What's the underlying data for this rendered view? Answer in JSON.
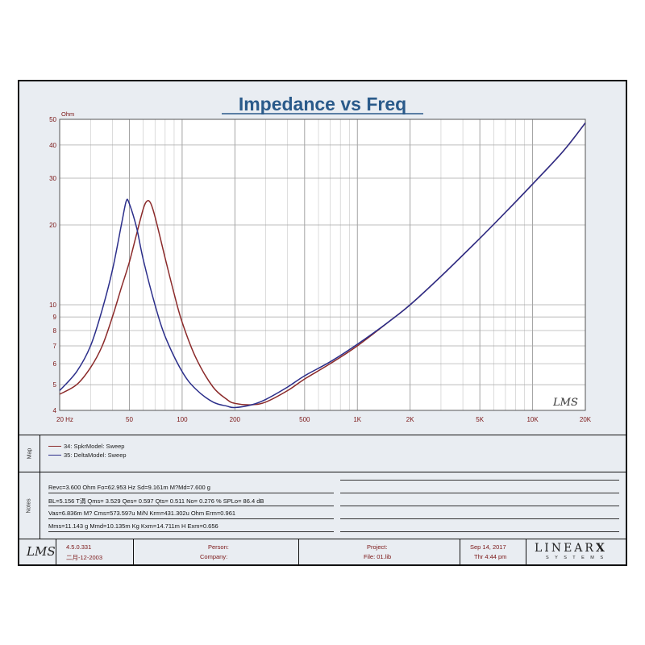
{
  "chart_data": {
    "type": "line",
    "title": "Impedance vs Freq",
    "ylabel": "Ohm",
    "xlabel": "",
    "x_scale": "log",
    "y_scale": "log",
    "xlim": [
      20,
      20000
    ],
    "ylim": [
      4,
      50
    ],
    "grid": true,
    "x_ticks": [
      {
        "v": 20,
        "label": "20  Hz"
      },
      {
        "v": 50,
        "label": "50"
      },
      {
        "v": 100,
        "label": "100"
      },
      {
        "v": 200,
        "label": "200"
      },
      {
        "v": 500,
        "label": "500"
      },
      {
        "v": 1000,
        "label": "1K"
      },
      {
        "v": 2000,
        "label": "2K"
      },
      {
        "v": 5000,
        "label": "5K"
      },
      {
        "v": 10000,
        "label": "10K"
      },
      {
        "v": 20000,
        "label": "20K"
      }
    ],
    "y_ticks": [
      {
        "v": 4,
        "label": "4"
      },
      {
        "v": 5,
        "label": "5"
      },
      {
        "v": 6,
        "label": "6"
      },
      {
        "v": 7,
        "label": "7"
      },
      {
        "v": 8,
        "label": "8"
      },
      {
        "v": 9,
        "label": "9"
      },
      {
        "v": 10,
        "label": "10"
      },
      {
        "v": 20,
        "label": "20"
      },
      {
        "v": 30,
        "label": "30"
      },
      {
        "v": 40,
        "label": "40"
      },
      {
        "v": 50,
        "label": "50"
      }
    ],
    "series": [
      {
        "name": "34: SpkrModel: Sweep",
        "color": "#8b2a2a",
        "points": [
          [
            20,
            4.6
          ],
          [
            25,
            5.0
          ],
          [
            30,
            5.8
          ],
          [
            35,
            7.0
          ],
          [
            40,
            9.0
          ],
          [
            45,
            11.6
          ],
          [
            50,
            14.5
          ],
          [
            55,
            18.5
          ],
          [
            60,
            23.0
          ],
          [
            63,
            24.6
          ],
          [
            66,
            24.2
          ],
          [
            70,
            21.5
          ],
          [
            80,
            15.0
          ],
          [
            90,
            11.0
          ],
          [
            100,
            8.6
          ],
          [
            120,
            6.3
          ],
          [
            150,
            4.9
          ],
          [
            180,
            4.4
          ],
          [
            200,
            4.25
          ],
          [
            250,
            4.2
          ],
          [
            300,
            4.3
          ],
          [
            400,
            4.75
          ],
          [
            500,
            5.25
          ],
          [
            700,
            6.0
          ],
          [
            1000,
            7.0
          ],
          [
            1500,
            8.6
          ],
          [
            2000,
            10.0
          ],
          [
            3000,
            12.8
          ],
          [
            5000,
            17.8
          ],
          [
            7000,
            22.3
          ],
          [
            10000,
            28.5
          ],
          [
            15000,
            38.0
          ],
          [
            20000,
            48.5
          ]
        ]
      },
      {
        "name": "35: DeltaModel: Sweep",
        "color": "#2b2e8a",
        "points": [
          [
            20,
            4.75
          ],
          [
            25,
            5.6
          ],
          [
            30,
            7.0
          ],
          [
            35,
            9.6
          ],
          [
            40,
            13.5
          ],
          [
            45,
            20.0
          ],
          [
            48,
            24.6
          ],
          [
            50,
            24.0
          ],
          [
            55,
            19.5
          ],
          [
            60,
            14.8
          ],
          [
            70,
            10.0
          ],
          [
            80,
            7.6
          ],
          [
            100,
            5.6
          ],
          [
            120,
            4.8
          ],
          [
            150,
            4.3
          ],
          [
            180,
            4.15
          ],
          [
            200,
            4.1
          ],
          [
            250,
            4.2
          ],
          [
            300,
            4.4
          ],
          [
            400,
            4.9
          ],
          [
            500,
            5.4
          ],
          [
            700,
            6.1
          ],
          [
            1000,
            7.1
          ],
          [
            1500,
            8.6
          ],
          [
            2000,
            10.0
          ],
          [
            3000,
            12.8
          ],
          [
            5000,
            17.8
          ],
          [
            7000,
            22.3
          ],
          [
            10000,
            28.5
          ],
          [
            15000,
            38.0
          ],
          [
            20000,
            48.5
          ]
        ]
      }
    ],
    "watermark": "LMS"
  },
  "map": {
    "label": "Map",
    "items": [
      {
        "text": "34: SpkrModel: Sweep",
        "color": "#8b2a2a"
      },
      {
        "text": "35: DeltaModel: Sweep",
        "color": "#2b2e8a"
      }
    ]
  },
  "notes": {
    "label": "Notes",
    "lines": [
      "Revc=3.600 Ohm  Fo=62.953 Hz  Sd=9.161m  M?Md=7.600 g",
      "BL=5.156 T涓  Qms= 3.529  Qes= 0.597  Qts= 0.511  No= 0.276 %  SPLo= 86.4 dB",
      "Vas=6.836m M? Cms=573.597u M/N  Krm=431.302u Ohm  Erm=0.961",
      "Mms=11.143 g  Mmd=10.135m Kg  Kxm=14.711m H  Exm=0.656"
    ]
  },
  "footer": {
    "logo": "LMS",
    "version": "4.5.0.331",
    "build_date": "二月-12-2003",
    "person_label": "Person:",
    "company_label": "Company:",
    "project_label": "Project:",
    "file_label": "File: 01.lib",
    "date": "Sep 14, 2017",
    "time": "Thr  4:44 pm",
    "brand": "LINEAR",
    "brand_x": "X",
    "brand_sub": "S Y S T E M S"
  }
}
